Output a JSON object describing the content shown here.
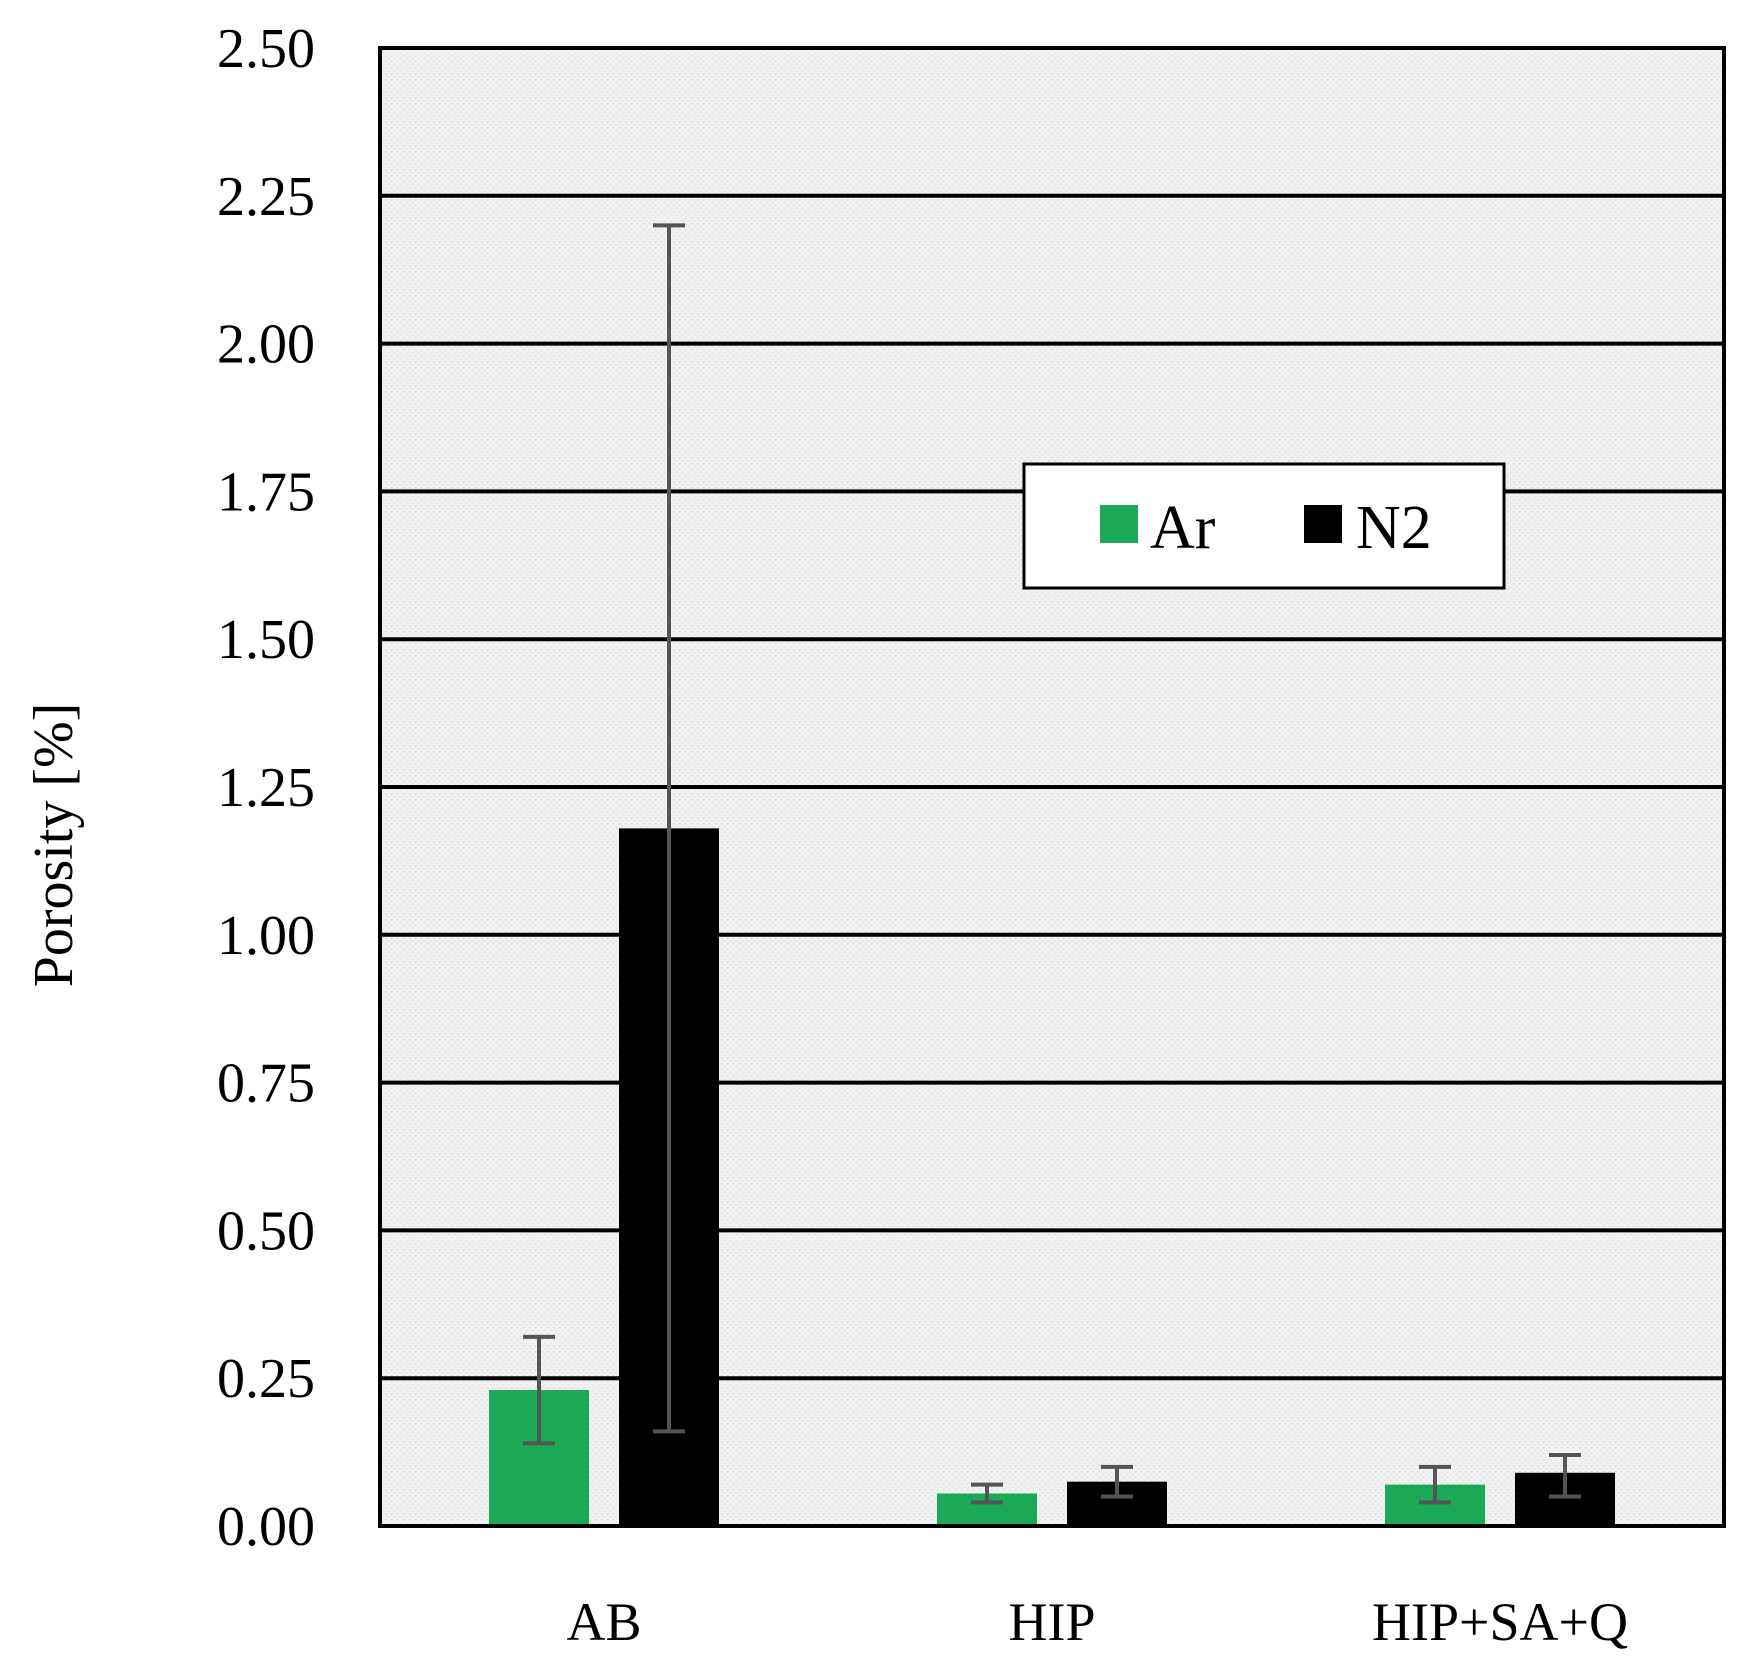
{
  "chart_data": {
    "type": "bar",
    "categories": [
      "AB",
      "HIP",
      "HIP+SA+Q"
    ],
    "series": [
      {
        "name": "Ar",
        "color": "#1aaa55",
        "values": [
          0.23,
          0.055,
          0.07
        ],
        "err_low": [
          0.14,
          0.04,
          0.04
        ],
        "err_high": [
          0.32,
          0.07,
          0.1
        ]
      },
      {
        "name": "N2",
        "color": "#000000",
        "values": [
          1.18,
          0.075,
          0.09
        ],
        "err_low": [
          0.16,
          0.05,
          0.05
        ],
        "err_high": [
          2.2,
          0.1,
          0.12
        ]
      }
    ],
    "yticks": [
      "0.00",
      "0.25",
      "0.50",
      "0.75",
      "1.00",
      "1.25",
      "1.50",
      "1.75",
      "2.00",
      "2.25",
      "2.50"
    ],
    "ylim": [
      0,
      2.5
    ],
    "ylabel": "Porosity [%]",
    "xlabel": "",
    "grid": true,
    "legend_position": "upper-right"
  }
}
